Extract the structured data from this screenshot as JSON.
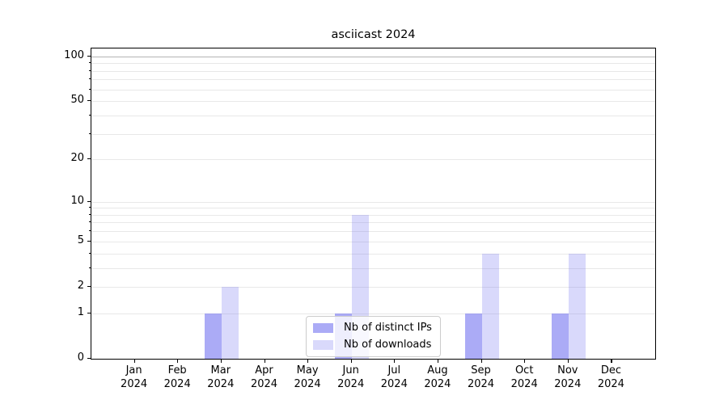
{
  "chart_data": {
    "type": "bar",
    "title": "asciicast 2024",
    "x_categories": [
      "Jan",
      "Feb",
      "Mar",
      "Apr",
      "May",
      "Jun",
      "Jul",
      "Aug",
      "Sep",
      "Oct",
      "Nov",
      "Dec"
    ],
    "x_year_label": "2024",
    "series": [
      {
        "name": "Nb of distinct IPs",
        "color": "rgba(102,102,238,0.55)",
        "values": [
          0,
          0,
          1,
          0,
          0,
          1,
          0,
          0,
          1,
          0,
          1,
          0
        ]
      },
      {
        "name": "Nb of downloads",
        "color": "rgba(102,102,238,0.25)",
        "values": [
          0,
          0,
          2,
          0,
          0,
          8,
          0,
          0,
          4,
          0,
          4,
          0
        ]
      }
    ],
    "y_axis": {
      "scale": "log1p",
      "tick_labels": [
        "0",
        "1",
        "2",
        "5",
        "10",
        "20",
        "50",
        "100"
      ],
      "tick_values": [
        0,
        1,
        2,
        5,
        10,
        20,
        50,
        100
      ],
      "minor_grid_values": [
        1,
        2,
        3,
        4,
        5,
        6,
        7,
        8,
        9,
        10,
        20,
        30,
        40,
        50,
        60,
        70,
        80,
        90
      ],
      "major_grid_values": [
        100
      ],
      "ylim": [
        0,
        113
      ]
    },
    "legend": {
      "position": "lower center",
      "entries": [
        "Nb of distinct IPs",
        "Nb of downloads"
      ]
    },
    "grid": true,
    "colors": {
      "axis": "#000000",
      "text": "#000000",
      "grid_minor": "#e8e8e8",
      "grid_major": "#b4b4b4",
      "background": "#ffffff",
      "legend_border": "#cccccc"
    }
  }
}
